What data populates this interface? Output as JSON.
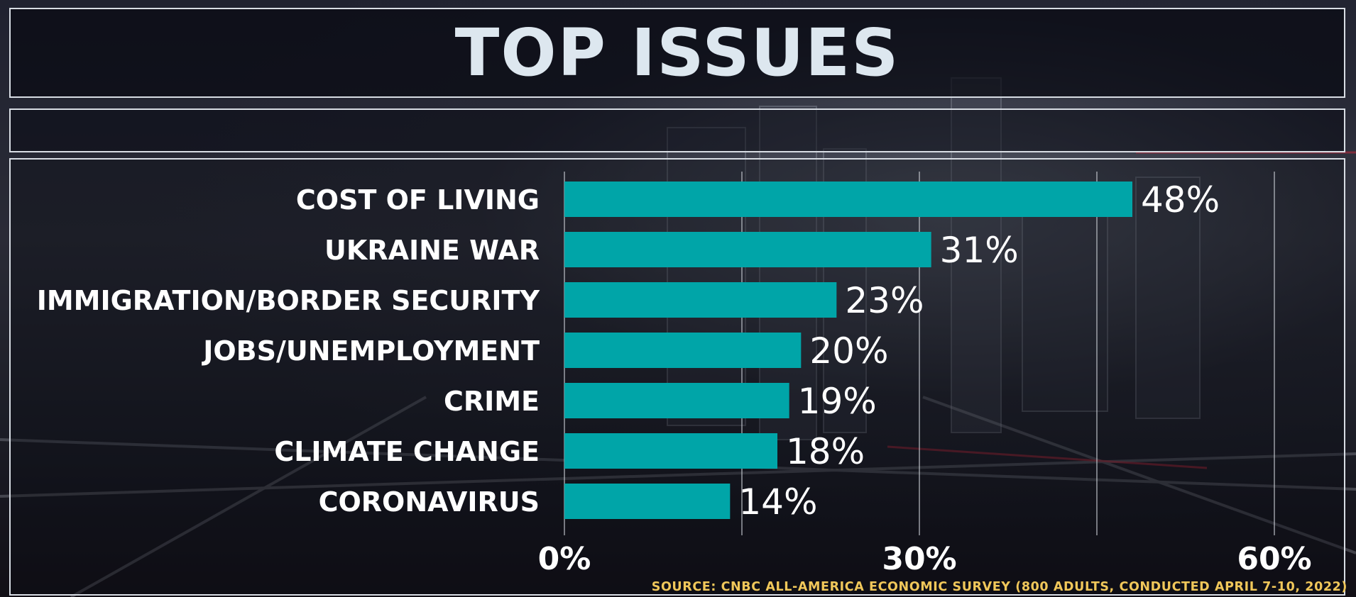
{
  "title": "TOP ISSUES",
  "source": "SOURCE: CNBC ALL-AMERICA ECONOMIC SURVEY (800 ADULTS, CONDUCTED APRIL 7-10, 2022)",
  "colors": {
    "bar": "#00a5a8",
    "gridline": "#c9cdd4",
    "source_text": "#f0c75a"
  },
  "chart_data": {
    "type": "bar",
    "orientation": "horizontal",
    "title": "TOP ISSUES",
    "categories": [
      "COST OF LIVING",
      "UKRAINE WAR",
      "IMMIGRATION/BORDER SECURITY",
      "JOBS/UNEMPLOYMENT",
      "CRIME",
      "CLIMATE CHANGE",
      "CORONAVIRUS"
    ],
    "values": [
      48,
      31,
      23,
      20,
      19,
      18,
      14
    ],
    "value_labels": [
      "48%",
      "31%",
      "23%",
      "20%",
      "19%",
      "18%",
      "14%"
    ],
    "x_ticks": [
      0,
      30,
      60
    ],
    "x_tick_labels": [
      "0%",
      "30%",
      "60%"
    ],
    "xlim": [
      0,
      60
    ],
    "gridlines": [
      0,
      15,
      30,
      45,
      60
    ],
    "grid": true,
    "legend": "none"
  }
}
